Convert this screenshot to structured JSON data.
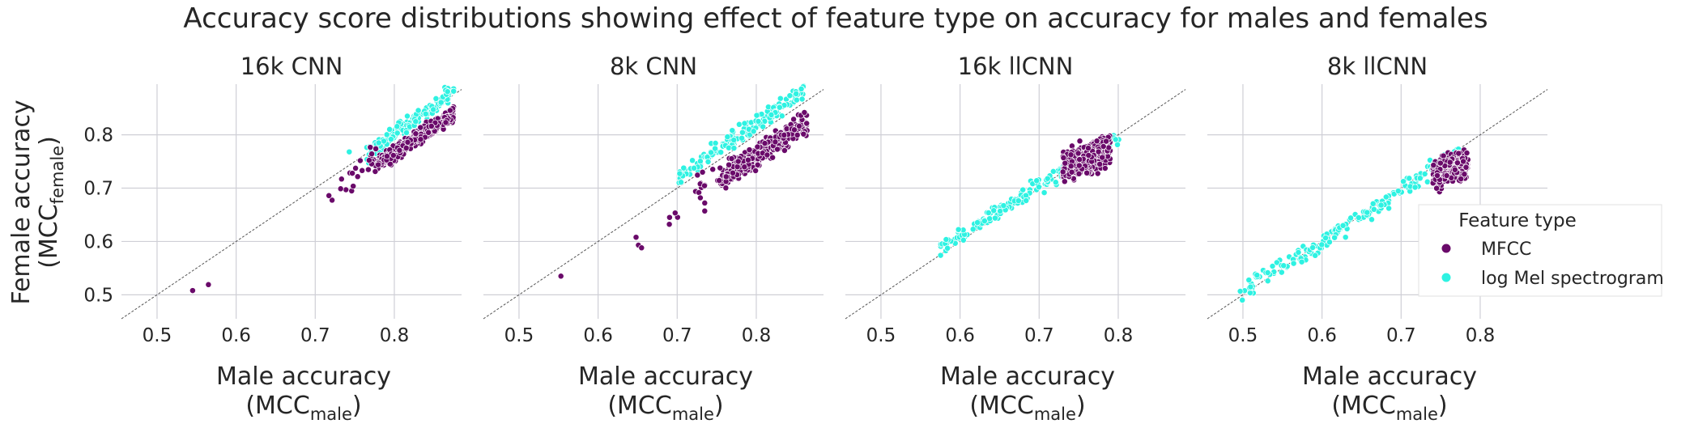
{
  "figure": {
    "title": "Accuracy score distributions showing effect of feature type on accuracy for males and females"
  },
  "chart_data": [
    {
      "type": "scatter",
      "title": "16k CNN",
      "xlabel": "Male accuracy",
      "xlabel_sub_prefix": "(MCC",
      "xlabel_sub": "male",
      "xlabel_sub_suffix": ")",
      "ylabel": "Female accuracy",
      "ylabel_sub_prefix": "(MCC",
      "ylabel_sub": "female",
      "ylabel_sub_suffix": ")",
      "xlim": [
        0.455,
        0.885
      ],
      "ylim": [
        0.455,
        0.895
      ],
      "xticks": [
        "0.5",
        "0.6",
        "0.7",
        "0.8"
      ],
      "yticks": [
        "0.5",
        "0.6",
        "0.7",
        "0.8"
      ],
      "reference_line": "y = x",
      "clusters": [
        {
          "series": "MFCC",
          "n": 380,
          "x_range": [
            0.775,
            0.875
          ],
          "band_slope": 0.97,
          "band_offset": -0.009,
          "band_width": 0.022
        },
        {
          "series": "MFCC",
          "n": 22,
          "x_range": [
            0.715,
            0.78
          ],
          "band_slope": 1.2,
          "band_offset": -0.17,
          "band_width": 0.05
        },
        {
          "series": "log Mel spectrogram",
          "n": 150,
          "x_range": [
            0.765,
            0.875
          ],
          "band_slope": 1.1,
          "band_offset": -0.08,
          "band_width": 0.025
        }
      ],
      "points": [
        {
          "series": "MFCC",
          "x": 0.545,
          "y": 0.508
        },
        {
          "series": "MFCC",
          "x": 0.565,
          "y": 0.519
        },
        {
          "series": "log Mel spectrogram",
          "x": 0.743,
          "y": 0.768
        }
      ]
    },
    {
      "type": "scatter",
      "title": "8k CNN",
      "xlabel": "Male accuracy",
      "xlabel_sub_prefix": "(MCC",
      "xlabel_sub": "male",
      "xlabel_sub_suffix": ")",
      "xlim": [
        0.455,
        0.885
      ],
      "ylim": [
        0.455,
        0.895
      ],
      "xticks": [
        "0.5",
        "0.6",
        "0.7",
        "0.8"
      ],
      "reference_line": "y = x",
      "clusters": [
        {
          "series": "MFCC",
          "n": 380,
          "x_range": [
            0.755,
            0.865
          ],
          "band_slope": 1.0,
          "band_offset": -0.04,
          "band_width": 0.028
        },
        {
          "series": "MFCC",
          "n": 25,
          "x_range": [
            0.69,
            0.77
          ],
          "band_slope": 1.1,
          "band_offset": -0.11,
          "band_width": 0.05
        },
        {
          "series": "log Mel spectrogram",
          "n": 160,
          "x_range": [
            0.7,
            0.86
          ],
          "band_slope": 1.0,
          "band_offset": 0.02,
          "band_width": 0.025
        }
      ],
      "points": [
        {
          "series": "MFCC",
          "x": 0.553,
          "y": 0.535
        },
        {
          "series": "MFCC",
          "x": 0.648,
          "y": 0.608
        },
        {
          "series": "MFCC",
          "x": 0.651,
          "y": 0.593
        },
        {
          "series": "MFCC",
          "x": 0.655,
          "y": 0.588
        }
      ]
    },
    {
      "type": "scatter",
      "title": "16k llCNN",
      "xlabel": "Male accuracy",
      "xlabel_sub_prefix": "(MCC",
      "xlabel_sub": "male",
      "xlabel_sub_suffix": ")",
      "xlim": [
        0.455,
        0.885
      ],
      "ylim": [
        0.455,
        0.895
      ],
      "xticks": [
        "0.5",
        "0.6",
        "0.7",
        "0.8"
      ],
      "reference_line": "y = x",
      "clusters": [
        {
          "series": "MFCC",
          "n": 320,
          "x_range": [
            0.73,
            0.79
          ],
          "band_slope": 0.6,
          "band_offset": 0.3,
          "band_width": 0.045
        },
        {
          "series": "log Mel spectrogram",
          "n": 170,
          "x_range": [
            0.575,
            0.805
          ],
          "band_slope": 0.93,
          "band_offset": 0.053,
          "band_width": 0.022
        }
      ],
      "points": []
    },
    {
      "type": "scatter",
      "title": "8k llCNN",
      "xlabel": "Male accuracy",
      "xlabel_sub_prefix": "(MCC",
      "xlabel_sub": "male",
      "xlabel_sub_suffix": ")",
      "xlim": [
        0.455,
        0.885
      ],
      "ylim": [
        0.455,
        0.895
      ],
      "xticks": [
        "0.5",
        "0.6",
        "0.7",
        "0.8"
      ],
      "reference_line": "y = x",
      "clusters": [
        {
          "series": "MFCC",
          "n": 320,
          "x_range": [
            0.74,
            0.785
          ],
          "band_slope": 0.4,
          "band_offset": 0.43,
          "band_width": 0.04
        },
        {
          "series": "log Mel spectrogram",
          "n": 180,
          "x_range": [
            0.495,
            0.775
          ],
          "band_slope": 0.95,
          "band_offset": 0.03,
          "band_width": 0.025
        }
      ],
      "points": []
    }
  ],
  "legend": {
    "title": "Feature type",
    "placement": "right of last panel",
    "items": [
      {
        "label": "MFCC",
        "color": "#6a0a6a"
      },
      {
        "label": "log Mel spectrogram",
        "color": "#2ef2e2"
      }
    ]
  },
  "series_colors": {
    "MFCC": "#6a0a6a",
    "log Mel spectrogram": "#2ef2e2"
  }
}
